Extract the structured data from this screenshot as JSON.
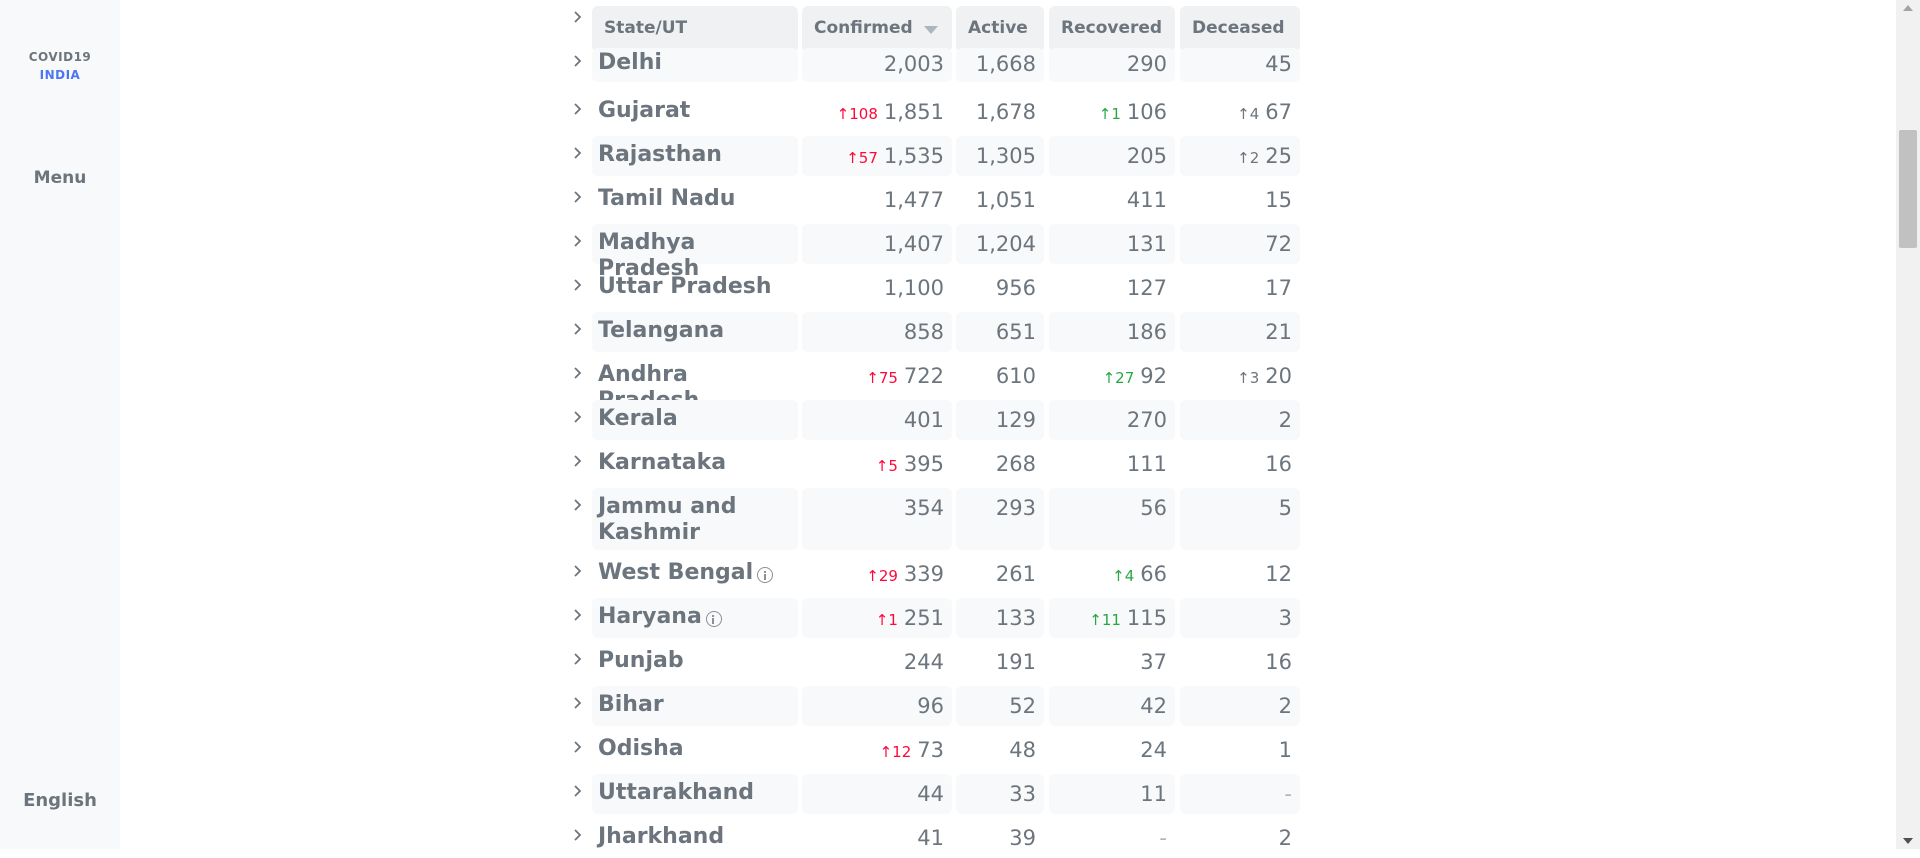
{
  "sidebar": {
    "logo_line1": "COVID19",
    "logo_line2": "INDIA",
    "menu_label": "Menu",
    "language_label": "English"
  },
  "table": {
    "headers": {
      "state": "State/UT",
      "confirmed": "Confirmed",
      "active": "Active",
      "recovered": "Recovered",
      "deceased": "Deceased"
    },
    "rows": [
      {
        "state": "Delhi",
        "confirmed": "2,003",
        "active": "1,668",
        "recovered": "290",
        "deceased": "45"
      },
      {
        "state": "Gujarat",
        "confirmed_delta": "108",
        "confirmed": "1,851",
        "active": "1,678",
        "recovered_delta": "1",
        "recovered": "106",
        "deceased_delta": "4",
        "deceased": "67"
      },
      {
        "state": "Rajasthan",
        "confirmed_delta": "57",
        "confirmed": "1,535",
        "active": "1,305",
        "recovered": "205",
        "deceased_delta": "2",
        "deceased": "25"
      },
      {
        "state": "Tamil Nadu",
        "confirmed": "1,477",
        "active": "1,051",
        "recovered": "411",
        "deceased": "15"
      },
      {
        "state": "Madhya Pradesh",
        "confirmed": "1,407",
        "active": "1,204",
        "recovered": "131",
        "deceased": "72"
      },
      {
        "state": "Uttar Pradesh",
        "confirmed": "1,100",
        "active": "956",
        "recovered": "127",
        "deceased": "17"
      },
      {
        "state": "Telangana",
        "confirmed": "858",
        "active": "651",
        "recovered": "186",
        "deceased": "21"
      },
      {
        "state": "Andhra Pradesh",
        "confirmed_delta": "75",
        "confirmed": "722",
        "active": "610",
        "recovered_delta": "27",
        "recovered": "92",
        "deceased_delta": "3",
        "deceased": "20"
      },
      {
        "state": "Kerala",
        "confirmed": "401",
        "active": "129",
        "recovered": "270",
        "deceased": "2"
      },
      {
        "state": "Karnataka",
        "confirmed_delta": "5",
        "confirmed": "395",
        "active": "268",
        "recovered": "111",
        "deceased": "16"
      },
      {
        "state": "Jammu and Kashmir",
        "confirmed": "354",
        "active": "293",
        "recovered": "56",
        "deceased": "5"
      },
      {
        "state": "West Bengal",
        "confirmed_delta": "29",
        "confirmed": "339",
        "active": "261",
        "recovered_delta": "4",
        "recovered": "66",
        "deceased": "12"
      },
      {
        "state": "Haryana",
        "confirmed_delta": "1",
        "confirmed": "251",
        "active": "133",
        "recovered_delta": "11",
        "recovered": "115",
        "deceased": "3"
      },
      {
        "state": "Punjab",
        "confirmed": "244",
        "active": "191",
        "recovered": "37",
        "deceased": "16"
      },
      {
        "state": "Bihar",
        "confirmed": "96",
        "active": "52",
        "recovered": "42",
        "deceased": "2"
      },
      {
        "state": "Odisha",
        "confirmed_delta": "12",
        "confirmed": "73",
        "active": "48",
        "recovered": "24",
        "deceased": "1"
      },
      {
        "state": "Uttarakhand",
        "confirmed": "44",
        "active": "33",
        "recovered": "11",
        "deceased": "-"
      },
      {
        "state": "Jharkhand",
        "confirmed": "41",
        "active": "39",
        "recovered": "-",
        "deceased": "2"
      }
    ]
  },
  "colors": {
    "confirmed_delta": "#ff073a",
    "recovered_delta": "#28a745",
    "deceased_delta": "#6c757d",
    "logo_accent": "#4c75f2"
  }
}
